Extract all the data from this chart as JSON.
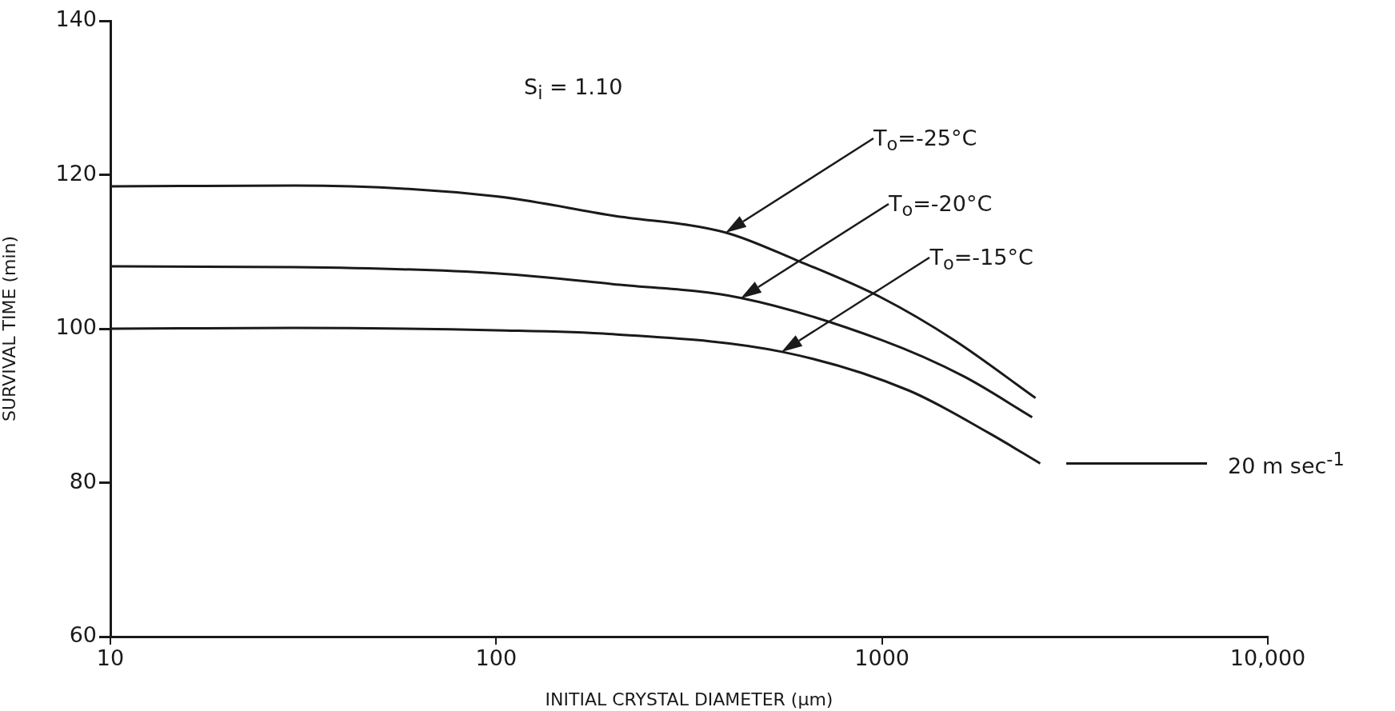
{
  "chart_data": {
    "type": "line",
    "xlabel": "INITIAL CRYSTAL DIAMETER (μm)",
    "ylabel": "SURVIVAL TIME (min)",
    "log": "x",
    "xlim": [
      10,
      10000
    ],
    "xticks": [
      10,
      100,
      1000,
      {
        "value": 10000,
        "label": "10,000"
      }
    ],
    "ylim": [
      60,
      140
    ],
    "yticks": [
      60,
      80,
      100,
      120,
      140
    ],
    "grid": false,
    "legend": false,
    "marker": "none",
    "line_style": "solid",
    "annotations": [
      "S$_{i}$ = 1.10",
      "20 m sec$^{-1}$"
    ],
    "series": [
      {
        "name": "T$_{o}$=-25°C",
        "color": "#1a1a1a",
        "x": [
          10,
          30,
          100,
          200,
          393,
          600,
          1000,
          1540,
          2500
        ],
        "values": [
          118.5,
          118.6,
          117.2,
          114.7,
          112.5,
          108.9,
          104.0,
          98.5,
          91.0
        ]
      },
      {
        "name": "T$_{o}$=-20°C",
        "color": "#1a1a1a",
        "x": [
          10,
          30,
          100,
          200,
          430,
          1000,
          1630,
          2450
        ],
        "values": [
          108.1,
          108.0,
          107.2,
          105.8,
          104.0,
          98.5,
          93.8,
          88.5
        ]
      },
      {
        "name": "T$_{o}$=-15°C",
        "color": "#1a1a1a",
        "x": [
          10,
          30,
          100,
          200,
          550,
          1170,
          1900,
          2570
        ],
        "values": [
          100.0,
          100.1,
          99.8,
          99.3,
          97.0,
          92.0,
          86.4,
          82.5
        ]
      }
    ]
  }
}
